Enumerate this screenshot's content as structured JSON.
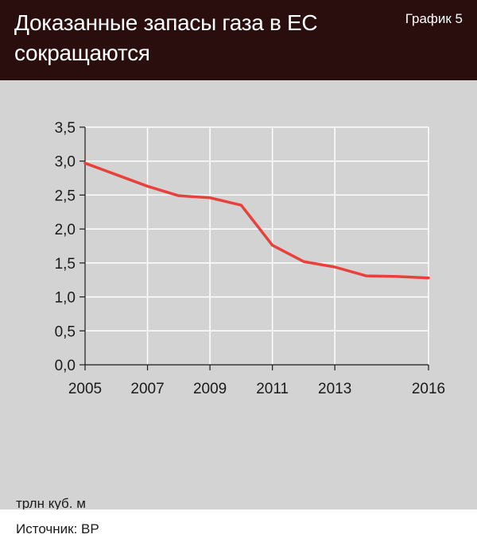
{
  "header": {
    "title": "Доказанные запасы газа в ЕС сокращаются",
    "chart_number": "График 5"
  },
  "unit_label": "трлн куб. м",
  "source": "Источник: BP",
  "colors": {
    "header_bg": "#2a0d0d",
    "plot_bg": "#d3d3d3",
    "line": "#e8413c",
    "grid": "#ffffff"
  },
  "chart_data": {
    "type": "line",
    "title": "Доказанные запасы газа в ЕС сокращаются",
    "ylabel": "трлн куб. м",
    "xlabel": "",
    "xlim": [
      2005,
      2016
    ],
    "ylim": [
      0,
      3.5
    ],
    "grid": true,
    "x_ticks": [
      2005,
      2007,
      2009,
      2011,
      2013,
      2016
    ],
    "x_tick_labels": [
      "2005",
      "2007",
      "2009",
      "2011",
      "2013",
      "2016"
    ],
    "y_ticks": [
      0,
      0.5,
      1.0,
      1.5,
      2.0,
      2.5,
      3.0,
      3.5
    ],
    "y_tick_labels": [
      "0,0",
      "0,5",
      "1,0",
      "1,5",
      "2,0",
      "2,5",
      "3,0",
      "3,5"
    ],
    "series": [
      {
        "x": [
          2005,
          2006,
          2007,
          2008,
          2009,
          2010,
          2011,
          2012,
          2013,
          2014,
          2015,
          2016
        ],
        "values": [
          2.97,
          2.8,
          2.63,
          2.49,
          2.46,
          2.35,
          1.76,
          1.52,
          1.44,
          1.31,
          1.3,
          1.28
        ]
      }
    ]
  }
}
